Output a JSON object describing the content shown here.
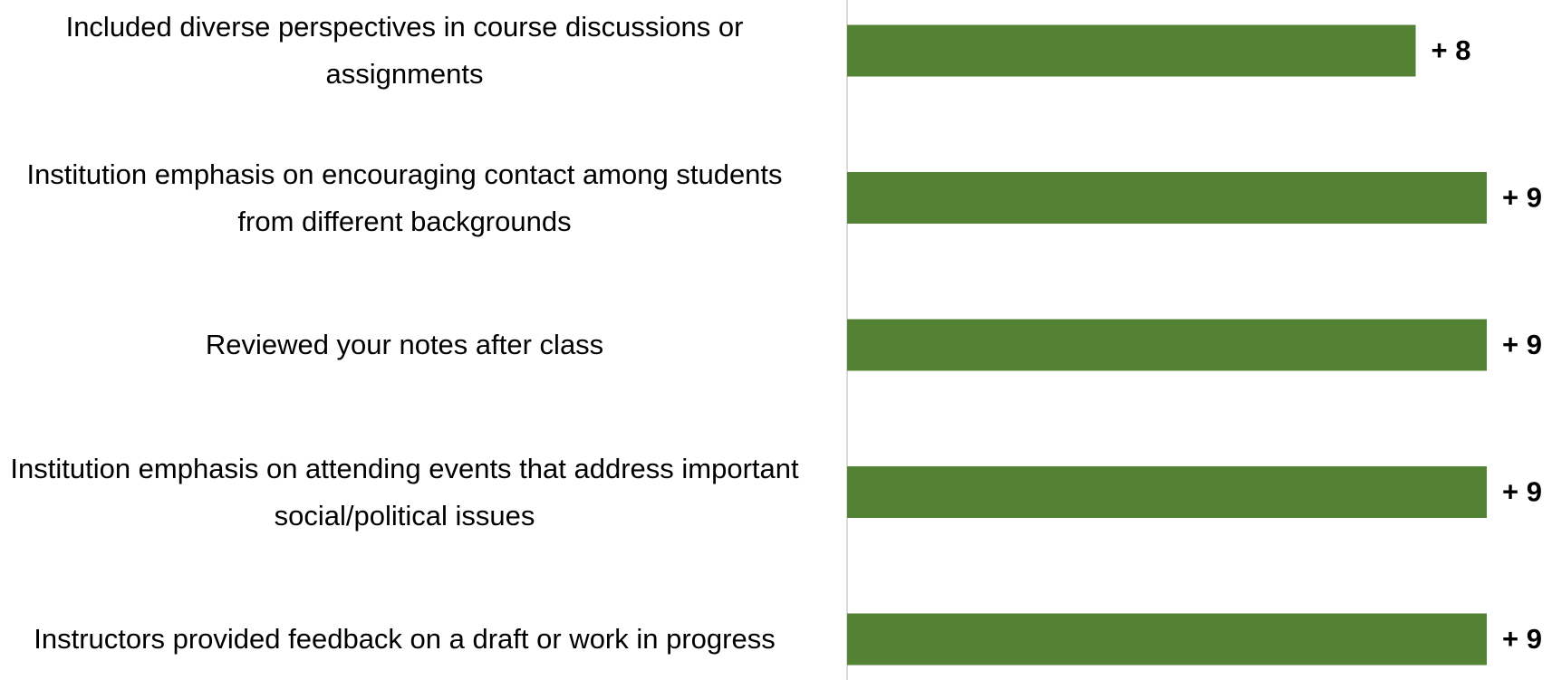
{
  "chart_data": {
    "type": "hbar",
    "categories": [
      "Included diverse perspectives in course discussions or assignments",
      "Institution emphasis on encouraging contact among students from different backgrounds",
      "Reviewed your notes after class",
      "Institution emphasis on attending events that address important social/political issues",
      "Instructors provided feedback on a draft or work in progress"
    ],
    "values": [
      8,
      9,
      9,
      9,
      9
    ],
    "value_labels": [
      "+ 8",
      "+ 9",
      "+ 9",
      "+ 9",
      "+ 9"
    ],
    "color": "#548235",
    "xlim": [
      0,
      9
    ]
  }
}
